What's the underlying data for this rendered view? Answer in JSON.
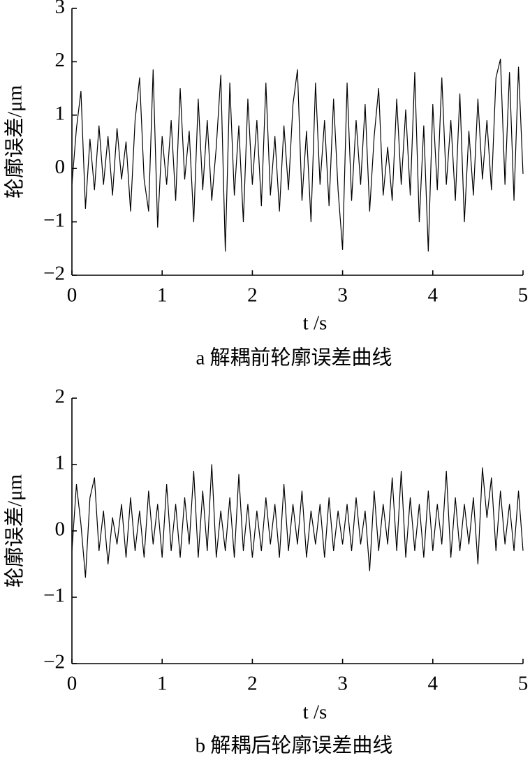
{
  "chart_data": [
    {
      "type": "line",
      "caption": "a 解耦前轮廓误差曲线",
      "x_label": "t /s",
      "y_label": "轮廓误差/μm",
      "x": [
        0,
        0.05,
        0.1,
        0.15,
        0.2,
        0.25,
        0.3,
        0.35,
        0.4,
        0.45,
        0.5,
        0.55,
        0.6,
        0.65,
        0.7,
        0.75,
        0.8,
        0.85,
        0.9,
        0.95,
        1,
        1.05,
        1.1,
        1.15,
        1.2,
        1.25,
        1.3,
        1.35,
        1.4,
        1.45,
        1.5,
        1.55,
        1.6,
        1.65,
        1.7,
        1.75,
        1.8,
        1.85,
        1.9,
        1.95,
        2,
        2.05,
        2.1,
        2.15,
        2.2,
        2.25,
        2.3,
        2.35,
        2.4,
        2.45,
        2.5,
        2.55,
        2.6,
        2.65,
        2.7,
        2.75,
        2.8,
        2.85,
        2.9,
        2.95,
        3,
        3.05,
        3.1,
        3.15,
        3.2,
        3.25,
        3.3,
        3.35,
        3.4,
        3.45,
        3.5,
        3.55,
        3.6,
        3.65,
        3.7,
        3.75,
        3.8,
        3.85,
        3.9,
        3.95,
        4,
        4.05,
        4.1,
        4.15,
        4.2,
        4.25,
        4.3,
        4.35,
        4.4,
        4.45,
        4.5,
        4.55,
        4.6,
        4.65,
        4.7,
        4.75,
        4.8,
        4.85,
        4.9,
        4.95,
        5
      ],
      "values": [
        -0.3,
        0.75,
        1.45,
        -0.75,
        0.55,
        -0.4,
        0.8,
        -0.3,
        0.6,
        -0.5,
        0.75,
        -0.2,
        0.5,
        -0.8,
        0.9,
        1.7,
        -0.2,
        -0.8,
        1.85,
        -1.1,
        0.6,
        -0.3,
        0.9,
        -0.6,
        1.5,
        -0.2,
        0.7,
        -1.0,
        1.3,
        -0.4,
        0.9,
        -0.6,
        0.4,
        1.75,
        -1.55,
        1.6,
        -0.5,
        0.8,
        -1.0,
        1.3,
        -0.3,
        0.9,
        -0.7,
        1.6,
        -0.5,
        0.6,
        -0.8,
        0.8,
        -0.4,
        1.2,
        1.85,
        -0.6,
        0.7,
        -1.0,
        1.6,
        -0.3,
        0.9,
        -0.7,
        1.3,
        -0.4,
        -1.52,
        1.6,
        -0.6,
        0.9,
        -0.3,
        1.2,
        -0.8,
        0.6,
        1.5,
        -0.5,
        0.4,
        -0.6,
        1.3,
        -0.3,
        1.1,
        -0.5,
        1.8,
        -1.0,
        0.8,
        -1.55,
        1.2,
        -0.4,
        1.7,
        -0.3,
        0.9,
        -0.6,
        1.4,
        -1.0,
        0.7,
        -0.5,
        1.3,
        -0.2,
        0.9,
        -0.4,
        1.7,
        2.05,
        -0.3,
        1.8,
        -0.6,
        1.9,
        -0.1
      ],
      "color": "#000000",
      "xlim": [
        0,
        5
      ],
      "xticks": [
        0,
        1,
        2,
        3,
        4,
        5
      ],
      "ylim": [
        -2,
        3
      ],
      "yticks": [
        {
          "value": -2,
          "label": "−2"
        },
        {
          "value": -1,
          "label": "−1"
        },
        0,
        1,
        2,
        3
      ]
    },
    {
      "type": "line",
      "caption": "b 解耦后轮廓误差曲线",
      "x_label": "t /s",
      "y_label": "轮廓误差/μm",
      "x": [
        0,
        0.05,
        0.1,
        0.15,
        0.2,
        0.25,
        0.3,
        0.35,
        0.4,
        0.45,
        0.5,
        0.55,
        0.6,
        0.65,
        0.7,
        0.75,
        0.8,
        0.85,
        0.9,
        0.95,
        1,
        1.05,
        1.1,
        1.15,
        1.2,
        1.25,
        1.3,
        1.35,
        1.4,
        1.45,
        1.5,
        1.55,
        1.6,
        1.65,
        1.7,
        1.75,
        1.8,
        1.85,
        1.9,
        1.95,
        2,
        2.05,
        2.1,
        2.15,
        2.2,
        2.25,
        2.3,
        2.35,
        2.4,
        2.45,
        2.5,
        2.55,
        2.6,
        2.65,
        2.7,
        2.75,
        2.8,
        2.85,
        2.9,
        2.95,
        3,
        3.05,
        3.1,
        3.15,
        3.2,
        3.25,
        3.3,
        3.35,
        3.4,
        3.45,
        3.5,
        3.55,
        3.6,
        3.65,
        3.7,
        3.75,
        3.8,
        3.85,
        3.9,
        3.95,
        4,
        4.05,
        4.1,
        4.15,
        4.2,
        4.25,
        4.3,
        4.35,
        4.4,
        4.45,
        4.5,
        4.55,
        4.6,
        4.65,
        4.7,
        4.75,
        4.8,
        4.85,
        4.9,
        4.95,
        5
      ],
      "values": [
        -0.3,
        0.7,
        0.1,
        -0.7,
        0.5,
        0.8,
        -0.3,
        0.3,
        -0.5,
        0.2,
        -0.2,
        0.4,
        -0.4,
        0.5,
        -0.3,
        0.3,
        -0.4,
        0.6,
        -0.2,
        0.4,
        -0.4,
        0.7,
        -0.3,
        0.4,
        -0.4,
        0.5,
        -0.2,
        0.9,
        -0.4,
        0.6,
        -0.3,
        1.0,
        -0.4,
        0.3,
        -0.3,
        0.5,
        -0.4,
        0.85,
        -0.3,
        0.4,
        -0.4,
        0.3,
        -0.3,
        0.5,
        -0.2,
        0.4,
        -0.4,
        0.7,
        -0.3,
        0.4,
        -0.2,
        0.6,
        -0.4,
        0.3,
        -0.2,
        0.4,
        -0.4,
        0.5,
        -0.3,
        0.3,
        -0.2,
        0.4,
        -0.3,
        0.5,
        -0.2,
        0.3,
        -0.6,
        0.6,
        -0.3,
        0.4,
        -0.2,
        0.8,
        -0.3,
        0.9,
        -0.4,
        0.5,
        -0.3,
        0.4,
        -0.4,
        0.6,
        -0.3,
        0.4,
        -0.2,
        0.9,
        -0.4,
        0.5,
        -0.3,
        0.4,
        -0.2,
        0.5,
        -0.5,
        0.95,
        0.2,
        0.8,
        -0.3,
        0.6,
        -0.2,
        0.4,
        -0.3,
        0.6,
        -0.3
      ],
      "color": "#000000",
      "xlim": [
        0,
        5
      ],
      "xticks": [
        0,
        1,
        2,
        3,
        4,
        5
      ],
      "ylim": [
        -2,
        2
      ],
      "yticks": [
        {
          "value": -2,
          "label": "−2"
        },
        {
          "value": -1,
          "label": "−1"
        },
        0,
        1,
        2
      ]
    }
  ]
}
